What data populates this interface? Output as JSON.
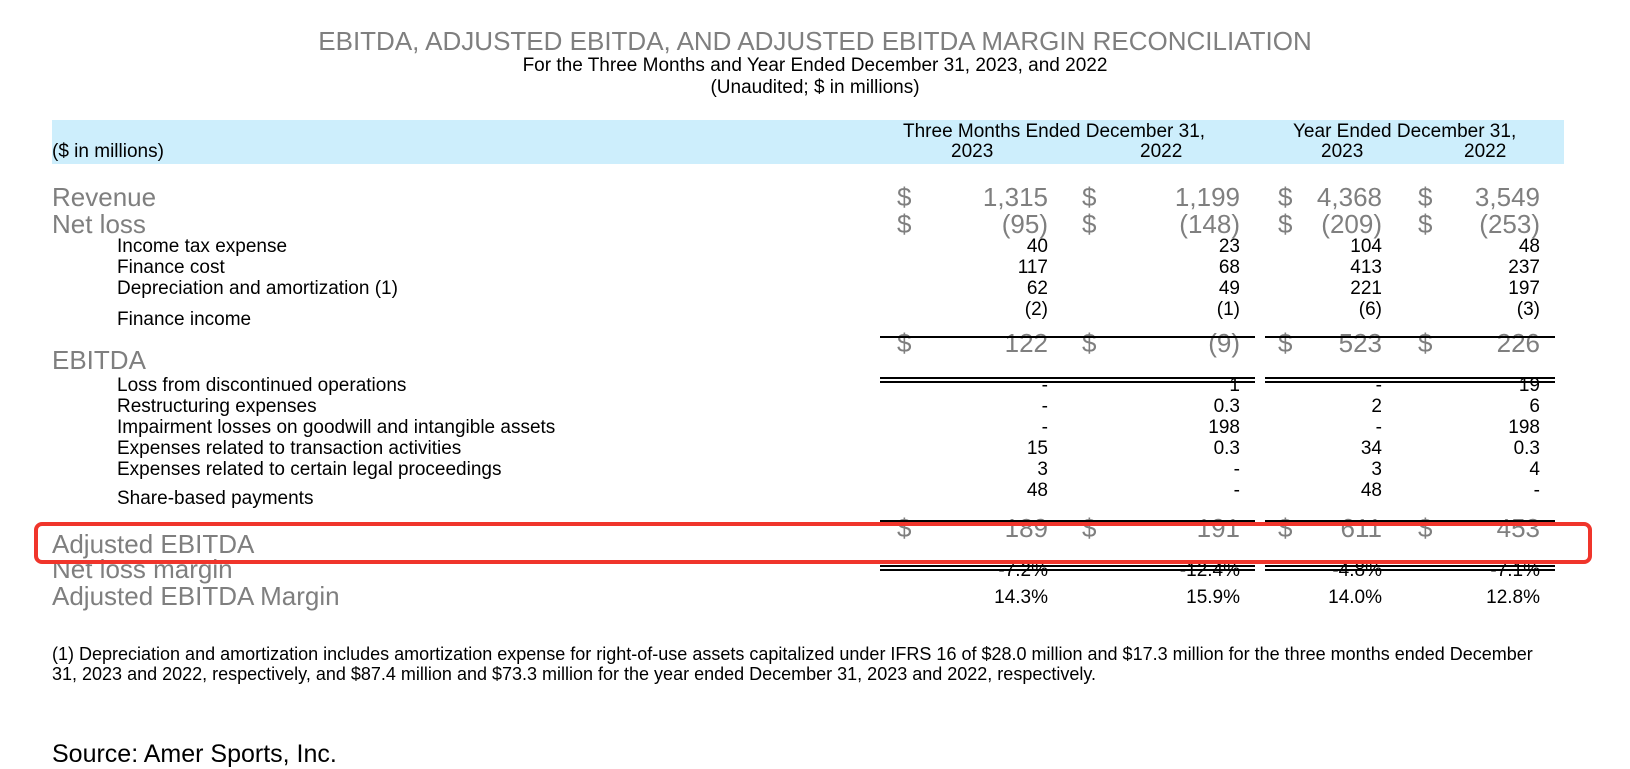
{
  "header": {
    "title": "EBITDA, ADJUSTED EBITDA, AND ADJUSTED EBITDA MARGIN RECONCILIATION",
    "subtitle": "For the Three Months and Year Ended December 31, 2023, and 2022",
    "unaudited": "(Unaudited; $ in millions)"
  },
  "columns": {
    "units_label": "($ in millions)",
    "group_three_months": "Three Months Ended December 31,",
    "group_year": "Year Ended December 31,",
    "years": [
      "2023",
      "2022",
      "2023",
      "2022"
    ]
  },
  "currency_symbol": "$",
  "rows": {
    "revenue": {
      "label": "Revenue",
      "values": [
        "1,315",
        "1,199",
        "4,368",
        "3,549"
      ]
    },
    "net_loss": {
      "label": "Net loss",
      "values": [
        "(95)",
        "(148)",
        "(209)",
        "(253)"
      ]
    },
    "income_tax": {
      "label": "Income tax expense",
      "values": [
        "40",
        "23",
        "104",
        "48"
      ]
    },
    "finance_cost": {
      "label": "Finance cost",
      "values": [
        "117",
        "68",
        "413",
        "237"
      ]
    },
    "depreciation": {
      "label": "Depreciation and amortization (1)",
      "values": [
        "62",
        "49",
        "221",
        "197"
      ]
    },
    "finance_income": {
      "label": "Finance income",
      "values": [
        "(2)",
        "(1)",
        "(6)",
        "(3)"
      ]
    },
    "ebitda": {
      "label": "EBITDA",
      "values": [
        "122",
        "(9)",
        "523",
        "226"
      ]
    },
    "discontinued": {
      "label": "Loss from discontinued operations",
      "values": [
        "-",
        "1",
        "-",
        "19"
      ]
    },
    "restructuring": {
      "label": "Restructuring expenses",
      "values": [
        "-",
        "0.3",
        "2",
        "6"
      ]
    },
    "impairment": {
      "label": "Impairment losses on goodwill and intangible assets",
      "values": [
        "-",
        "198",
        "-",
        "198"
      ]
    },
    "transaction": {
      "label": "Expenses related to transaction activities",
      "values": [
        "15",
        "0.3",
        "34",
        "0.3"
      ]
    },
    "legal": {
      "label": "Expenses related to certain legal proceedings",
      "values": [
        "3",
        "-",
        "3",
        "4"
      ]
    },
    "share_based": {
      "label": "Share-based payments",
      "values": [
        "48",
        "-",
        "48",
        "-"
      ]
    },
    "adjusted_ebitda": {
      "label": "Adjusted EBITDA",
      "values": [
        "189",
        "191",
        "611",
        "453"
      ]
    },
    "net_loss_margin": {
      "label": "Net loss margin",
      "values": [
        "-7.2%",
        "-12.4%",
        "-4.8%",
        "-7.1%"
      ]
    },
    "adjusted_margin": {
      "label": "Adjusted EBITDA Margin",
      "values": [
        "14.3%",
        "15.9%",
        "14.0%",
        "12.8%"
      ]
    }
  },
  "footnote": "(1) Depreciation and amortization includes amortization expense for right-of-use assets capitalized under IFRS 16 of $28.0 million and $17.3 million for the three months ended December 31, 2023 and 2022, respectively, and $87.4 million and $73.3 million for the year ended December 31, 2023 and 2022, respectively.",
  "source": "Source: Amer Sports, Inc.",
  "highlight_color": "#f0352b",
  "header_band_color": "#cdeefc"
}
